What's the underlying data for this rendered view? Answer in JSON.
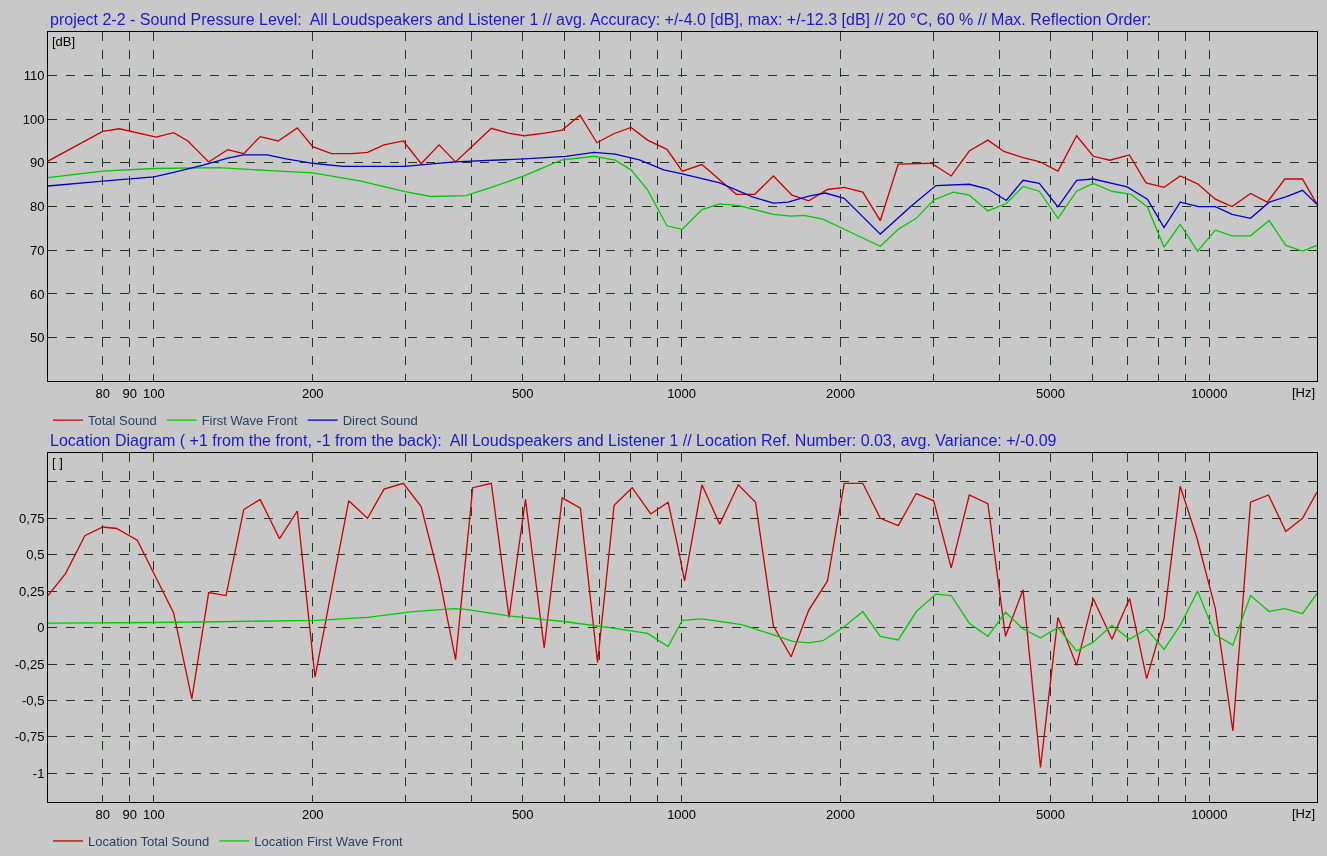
{
  "chart_data": [
    {
      "type": "line",
      "title": "project 2-2 - Sound Pressure Level:  All Loudspeakers and Listener 1 // avg. Accuracy: +/-4.0 [dB], max: +/-12.3 [dB] // 20 °C, 60 % // Max. Reflection Order:",
      "ylabel": "[dB]",
      "xlabel": "[Hz]",
      "log": "x",
      "grid": true,
      "legend": "bottom",
      "xlim": [
        63,
        16000
      ],
      "ylim": [
        40,
        120
      ],
      "yticks": [
        50,
        60,
        70,
        80,
        90,
        100,
        110
      ],
      "xticks": [
        80,
        90,
        100,
        200,
        {
          "value": 300,
          "label": null
        },
        {
          "value": 400,
          "label": null
        },
        500,
        {
          "value": 600,
          "label": null
        },
        {
          "value": 700,
          "label": null
        },
        {
          "value": 800,
          "label": null
        },
        {
          "value": 900,
          "label": null
        },
        1000,
        2000,
        {
          "value": 3000,
          "label": null
        },
        {
          "value": 4000,
          "label": null
        },
        5000,
        {
          "value": 6000,
          "label": null
        },
        {
          "value": 7000,
          "label": null
        },
        {
          "value": 8000,
          "label": null
        },
        {
          "value": 9000,
          "label": null
        },
        10000
      ],
      "series": [
        {
          "name": "Total Sound",
          "color": "#cc0000",
          "x": [
            63,
            80,
            86,
            101,
            109,
            116,
            127,
            138,
            148,
            159,
            172,
            187,
            200,
            217,
            237,
            254,
            273,
            297,
            321,
            347,
            373,
            402,
            436,
            469,
            503,
            551,
            594,
            642,
            691,
            742,
            802,
            862,
            938,
            1003,
            1093,
            1270,
            1376,
            1493,
            1619,
            1742,
            1890,
            2033,
            2205,
            2380,
            2574,
            2974,
            3243,
            3509,
            3806,
            4082,
            4437,
            4763,
            5167,
            5605,
            6026,
            6481,
            7057,
            7588,
            8209,
            8808,
            9503,
            10268,
            11044,
            11972,
            12878,
            13904,
            15020,
            16000
          ],
          "values": [
            90.4,
            97.2,
            97.8,
            95.9,
            96.9,
            95.0,
            90.2,
            93.0,
            92.1,
            96.0,
            95.0,
            98.0,
            93.7,
            92.1,
            92.1,
            92.4,
            94.1,
            95.0,
            89.8,
            94.1,
            90.2,
            93.9,
            97.9,
            96.8,
            96.2,
            96.8,
            97.5,
            100.9,
            94.6,
            96.6,
            98.1,
            95.2,
            93.1,
            88.1,
            89.6,
            82.8,
            82.8,
            87.0,
            82.6,
            81.3,
            83.9,
            84.4,
            83.3,
            76.8,
            89.7,
            89.9,
            87.0,
            92.7,
            95.2,
            92.6,
            91.2,
            90.3,
            88.1,
            96.2,
            91.5,
            90.6,
            91.8,
            85.4,
            84.4,
            87.0,
            85.2,
            81.7,
            80.0,
            83.0,
            81.0,
            86.3,
            86.3,
            80.5
          ]
        },
        {
          "name": "First Wave Front",
          "color": "#00cc00",
          "x": [
            63,
            80,
            100,
            133,
            166,
            200,
            247,
            299,
            335,
            390,
            436,
            503,
            591,
            682,
            748,
            802,
            862,
            938,
            1003,
            1093,
            1181,
            1285,
            1493,
            1610,
            1705,
            1853,
            2033,
            2380,
            2574,
            2785,
            3004,
            3273,
            3509,
            3806,
            4124,
            4437,
            4763,
            5167,
            5605,
            6026,
            6540,
            7105,
            7634,
            8209,
            8808,
            9503,
            10268,
            11044,
            11972,
            12988,
            13963,
            15020,
            16000
          ],
          "values": [
            86.6,
            88.1,
            88.7,
            88.9,
            88.2,
            87.7,
            85.8,
            83.4,
            82.3,
            82.5,
            84.4,
            87.0,
            90.6,
            91.5,
            90.6,
            88.4,
            83.8,
            75.6,
            74.8,
            79.3,
            80.6,
            80.2,
            78.2,
            77.8,
            78.0,
            77.1,
            74.8,
            70.9,
            74.8,
            77.3,
            81.5,
            83.3,
            82.6,
            79.0,
            80.7,
            84.6,
            83.5,
            77.3,
            83.5,
            85.3,
            83.5,
            82.8,
            79.9,
            70.7,
            75.9,
            69.8,
            74.6,
            73.3,
            73.3,
            76.8,
            71.1,
            69.8,
            71.1
          ]
        },
        {
          "name": "Direct Sound",
          "color": "#0000cc",
          "x": [
            63,
            80,
            100,
            109,
            124,
            138,
            148,
            164,
            178,
            200,
            228,
            299,
            371,
            503,
            603,
            682,
            748,
            832,
            925,
            1003,
            1181,
            1362,
            1493,
            1591,
            1742,
            1872,
            2033,
            2380,
            2718,
            3033,
            3509,
            3806,
            4124,
            4437,
            4763,
            5167,
            5605,
            6026,
            6987,
            7634,
            8209,
            8808,
            9550,
            10268,
            11044,
            11972,
            12988,
            13963,
            15020,
            16000
          ],
          "values": [
            84.7,
            85.8,
            86.8,
            87.8,
            89.5,
            91.1,
            91.8,
            91.8,
            90.9,
            89.9,
            89.2,
            89.2,
            90.2,
            90.9,
            91.5,
            92.4,
            92.0,
            90.7,
            88.4,
            87.5,
            85.4,
            82.2,
            80.8,
            81.0,
            82.4,
            83.1,
            81.9,
            73.7,
            80.0,
            84.8,
            85.1,
            84.0,
            81.4,
            86.0,
            85.3,
            79.9,
            86.0,
            86.3,
            84.5,
            81.7,
            75.2,
            81.0,
            80.0,
            80.0,
            78.2,
            77.3,
            81.0,
            82.2,
            83.7,
            80.5
          ]
        }
      ]
    },
    {
      "type": "line",
      "title": "Location Diagram ( +1 from the front, -1 from the back):  All Loudspeakers and Listener 1 // Location Ref. Number: 0.03, avg. Variance: +/-0.09",
      "ylabel": "[ ]",
      "xlabel": "[Hz]",
      "log": "x",
      "grid": true,
      "legend": "bottom",
      "xlim": [
        63,
        16000
      ],
      "ylim": [
        -1.2,
        1.2
      ],
      "yticks": [
        {
          "value": 1,
          "label": null
        },
        {
          "value": 0.75,
          "label": "0,75"
        },
        {
          "value": 0.5,
          "label": "0,5"
        },
        {
          "value": 0.25,
          "label": "0,25"
        },
        0,
        {
          "value": -0.25,
          "label": "-0,25"
        },
        {
          "value": -0.5,
          "label": "-0,5"
        },
        {
          "value": -0.75,
          "label": "-0,75"
        },
        -1
      ],
      "xticks": [
        80,
        90,
        100,
        200,
        {
          "value": 300,
          "label": null
        },
        {
          "value": 400,
          "label": null
        },
        500,
        {
          "value": 600,
          "label": null
        },
        {
          "value": 700,
          "label": null
        },
        {
          "value": 800,
          "label": null
        },
        {
          "value": 900,
          "label": null
        },
        1000,
        2000,
        {
          "value": 3000,
          "label": null
        },
        {
          "value": 4000,
          "label": null
        },
        5000,
        {
          "value": 6000,
          "label": null
        },
        {
          "value": 7000,
          "label": null
        },
        {
          "value": 8000,
          "label": null
        },
        {
          "value": 9000,
          "label": null
        },
        10000
      ],
      "series": [
        {
          "name": "Location Total Sound",
          "color": "#cc0000",
          "x": [
            63,
            68,
            74,
            80,
            85,
            93,
            101,
            109,
            118,
            127,
            137,
            148,
            159,
            173,
            187,
            202,
            234,
            254,
            273,
            297,
            321,
            348,
            373,
            402,
            436,
            471,
            506,
            549,
            594,
            643,
            693,
            745,
            806,
            874,
            943,
            987,
            1013,
            1093,
            1181,
            1281,
            1381,
            1493,
            1613,
            1742,
            1890,
            2033,
            2205,
            2380,
            2574,
            2784,
            3004,
            3243,
            3509,
            3806,
            4110,
            4437,
            4788,
            5167,
            5605,
            6026,
            6540,
            7062,
            7609,
            8209,
            8808,
            9467,
            10268,
            11085,
            11972,
            12945,
            13963,
            15020,
            16000
          ],
          "values": [
            0.22,
            0.37,
            0.63,
            0.69,
            0.68,
            0.6,
            0.34,
            0.1,
            -0.49,
            0.24,
            0.22,
            0.81,
            0.88,
            0.61,
            0.8,
            -0.34,
            0.87,
            0.75,
            0.95,
            0.99,
            0.83,
            0.33,
            -0.22,
            0.96,
            0.99,
            0.07,
            0.88,
            -0.14,
            0.89,
            0.82,
            -0.24,
            0.84,
            0.96,
            0.78,
            0.86,
            0.53,
            0.32,
            0.98,
            0.71,
            0.98,
            0.86,
            0.01,
            -0.2,
            0.12,
            0.32,
            0.99,
            0.99,
            0.75,
            0.7,
            0.92,
            0.87,
            0.41,
            0.91,
            0.85,
            -0.06,
            0.26,
            -0.96,
            0.07,
            -0.26,
            0.2,
            -0.08,
            0.2,
            -0.35,
            0.06,
            0.97,
            0.62,
            0.13,
            -0.71,
            0.86,
            0.91,
            0.66,
            0.75,
            0.93
          ]
        },
        {
          "name": "Location First Wave Front",
          "color": "#00cc00",
          "x": [
            63,
            100,
            133,
            204,
            254,
            310,
            370,
            390,
            470,
            603,
            748,
            862,
            943,
            1003,
            1093,
            1300,
            1493,
            1624,
            1742,
            1853,
            2033,
            2205,
            2380,
            2574,
            2785,
            3033,
            3243,
            3509,
            3806,
            4110,
            4437,
            4788,
            5167,
            5605,
            6026,
            6540,
            7062,
            7609,
            8209,
            8808,
            9503,
            10268,
            11085,
            11972,
            12988,
            13904,
            15020,
            16000
          ],
          "values": [
            0.03,
            0.035,
            0.04,
            0.05,
            0.07,
            0.11,
            0.13,
            0.125,
            0.08,
            0.04,
            -0.005,
            -0.04,
            -0.13,
            0.05,
            0.06,
            0.02,
            -0.05,
            -0.095,
            -0.105,
            -0.09,
            0.005,
            0.11,
            -0.06,
            -0.085,
            0.11,
            0.23,
            0.22,
            0.03,
            -0.06,
            0.105,
            -0.01,
            -0.07,
            0.0,
            -0.16,
            -0.1,
            0.015,
            -0.08,
            -0.01,
            -0.15,
            0.015,
            0.25,
            -0.05,
            -0.12,
            0.22,
            0.11,
            0.13,
            0.095,
            0.235
          ]
        }
      ]
    }
  ]
}
